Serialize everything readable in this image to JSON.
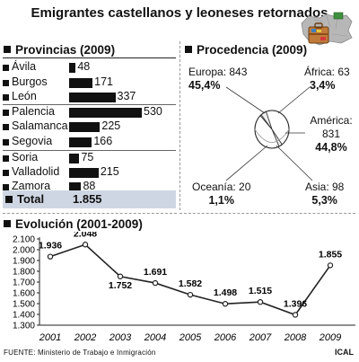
{
  "title": "Emigrantes castellanos y leoneses retornados",
  "provincias": {
    "heading": "Provincias (2009)",
    "rows": [
      {
        "name": "Ávila",
        "value": 48
      },
      {
        "name": "Burgos",
        "value": 171
      },
      {
        "name": "León",
        "value": 337
      },
      {
        "name": "Palencia",
        "value": 530
      },
      {
        "name": "Salamanca",
        "value": 225
      },
      {
        "name": "Segovia",
        "value": 166
      },
      {
        "name": "Soria",
        "value": 75
      },
      {
        "name": "Valladolid",
        "value": 215
      },
      {
        "name": "Zamora",
        "value": 88
      }
    ],
    "total_label": "Total",
    "total_value": "1.855"
  },
  "procedencia": {
    "heading": "Procedencia (2009)",
    "items": [
      {
        "name": "Europa",
        "count": 843,
        "pct": "45,4%"
      },
      {
        "name": "África",
        "count": 63,
        "pct": "3,4%"
      },
      {
        "name": "América",
        "count": 831,
        "pct": "44,8%"
      },
      {
        "name": "Oceanía",
        "count": 20,
        "pct": "1,1%"
      },
      {
        "name": "Asia",
        "count": 98,
        "pct": "5,3%"
      }
    ],
    "labels": {
      "europa_line": "Europa: 843",
      "africa_line": "África: 63",
      "america_name": "América:",
      "america_count": "831",
      "oceania_line": "Oceanía: 20",
      "asia_line": "Asia: 98"
    }
  },
  "evolucion": {
    "heading": "Evolución (2001-2009)",
    "yticks": [
      "2.100",
      "2.000",
      "1.900",
      "1.800",
      "1.700",
      "1.600",
      "1.500",
      "1.400",
      "1.300"
    ],
    "point_labels": [
      "1.936",
      "2.048",
      "1.752",
      "1.691",
      "1.582",
      "1.498",
      "1.515",
      "1.396",
      "1.855"
    ]
  },
  "chart_data": [
    {
      "type": "bar",
      "title": "Provincias (2009)",
      "categories": [
        "Ávila",
        "Burgos",
        "León",
        "Palencia",
        "Salamanca",
        "Segovia",
        "Soria",
        "Valladolid",
        "Zamora"
      ],
      "values": [
        48,
        171,
        337,
        530,
        225,
        166,
        75,
        215,
        88
      ],
      "orientation": "horizontal"
    },
    {
      "type": "pie",
      "title": "Procedencia (2009)",
      "categories": [
        "Europa",
        "África",
        "América",
        "Oceanía",
        "Asia"
      ],
      "values": [
        843,
        63,
        831,
        20,
        98
      ],
      "percentages": [
        45.4,
        3.4,
        44.8,
        1.1,
        5.3
      ]
    },
    {
      "type": "line",
      "title": "Evolución (2001-2009)",
      "x": [
        2001,
        2002,
        2003,
        2004,
        2005,
        2006,
        2007,
        2008,
        2009
      ],
      "values": [
        1936,
        2048,
        1752,
        1691,
        1582,
        1498,
        1515,
        1396,
        1855
      ],
      "ylim": [
        1300,
        2100
      ],
      "grid": false
    }
  ],
  "source": "FUENTE: Ministerio de Trabajo e Inmigración",
  "credit": "ICAL",
  "colors": {
    "line": "#222222",
    "marker_fill": "#ffffff",
    "total_bg": "#cfd6e3",
    "bar": "#111111"
  },
  "icons": [
    "map-with-suitcase-icon"
  ]
}
